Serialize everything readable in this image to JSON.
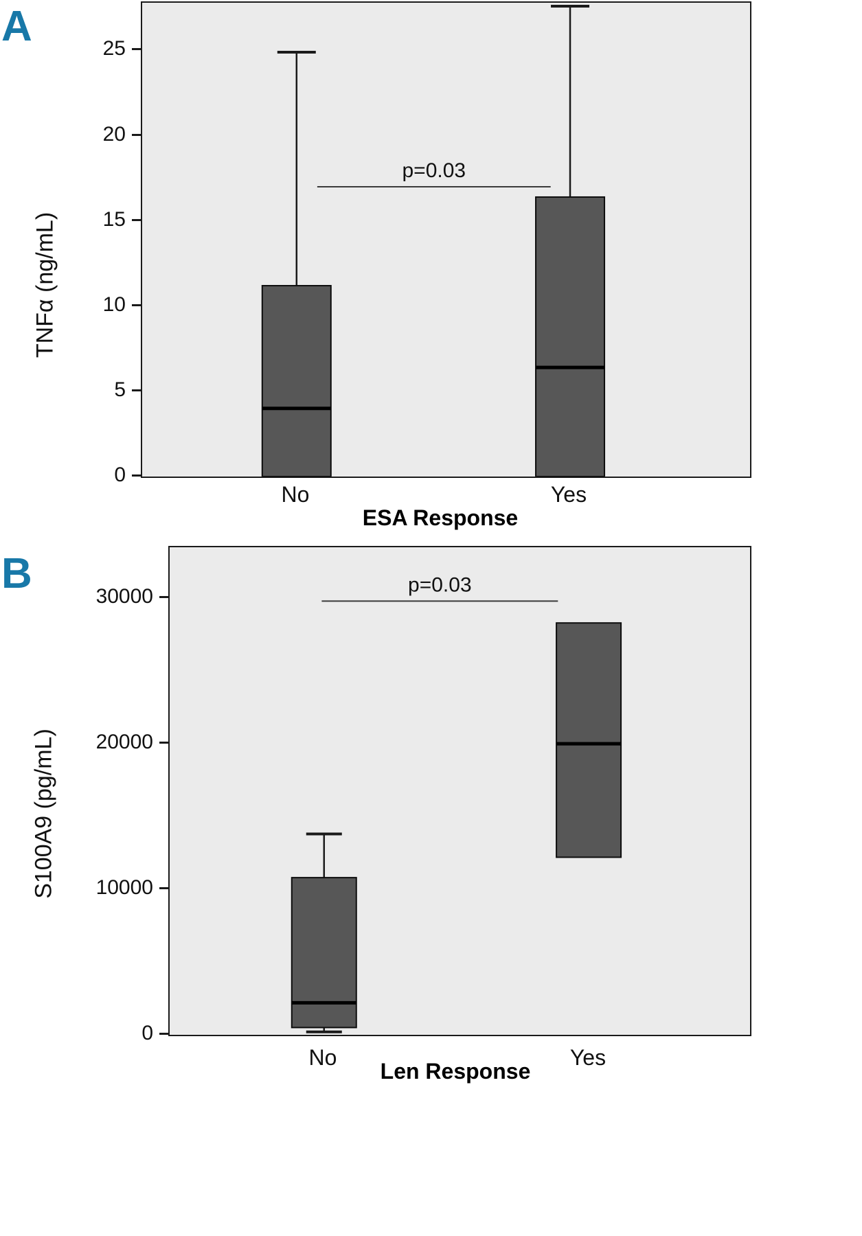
{
  "colors": {
    "panel_label": "#1878a8",
    "box_fill": "#575757",
    "box_stroke": "#0d0d0d",
    "plot_bg": "#ebebeb",
    "axis_border": "#1a1a1a",
    "annotation_line": "#3a3a3a"
  },
  "chart_data": [
    {
      "type": "box",
      "panel_label": "A",
      "xlabel": "ESA Response",
      "ylabel": "TNFα (ng/mL)",
      "categories": [
        "No",
        "Yes"
      ],
      "yticks": [
        0,
        5,
        10,
        15,
        20,
        25
      ],
      "ylim": [
        0,
        27.8
      ],
      "grid": false,
      "series": [
        {
          "name": "No",
          "q1": 0,
          "median": 4.0,
          "q3": 11.2,
          "whisker_low": 0,
          "whisker_high": 24.9
        },
        {
          "name": "Yes",
          "q1": 0,
          "median": 6.4,
          "q3": 16.4,
          "whisker_low": 0,
          "whisker_high": 27.6
        }
      ],
      "annotation": {
        "text": "p=0.03",
        "y_line": 17.0
      }
    },
    {
      "type": "box",
      "panel_label": "B",
      "xlabel": "Len Response",
      "ylabel": "S100A9 (pg/mL)",
      "categories": [
        "No",
        "Yes"
      ],
      "yticks": [
        0,
        10000,
        20000,
        30000
      ],
      "ylim": [
        0,
        33500
      ],
      "grid": false,
      "series": [
        {
          "name": "No",
          "q1": 500,
          "median": 2200,
          "q3": 10800,
          "whisker_low": 200,
          "whisker_high": 13800
        },
        {
          "name": "Yes",
          "q1": 12200,
          "median": 20000,
          "q3": 28300,
          "whisker_low": 12200,
          "whisker_high": 28300
        }
      ],
      "annotation": {
        "text": "p=0.03",
        "y_line": 29800
      }
    }
  ]
}
